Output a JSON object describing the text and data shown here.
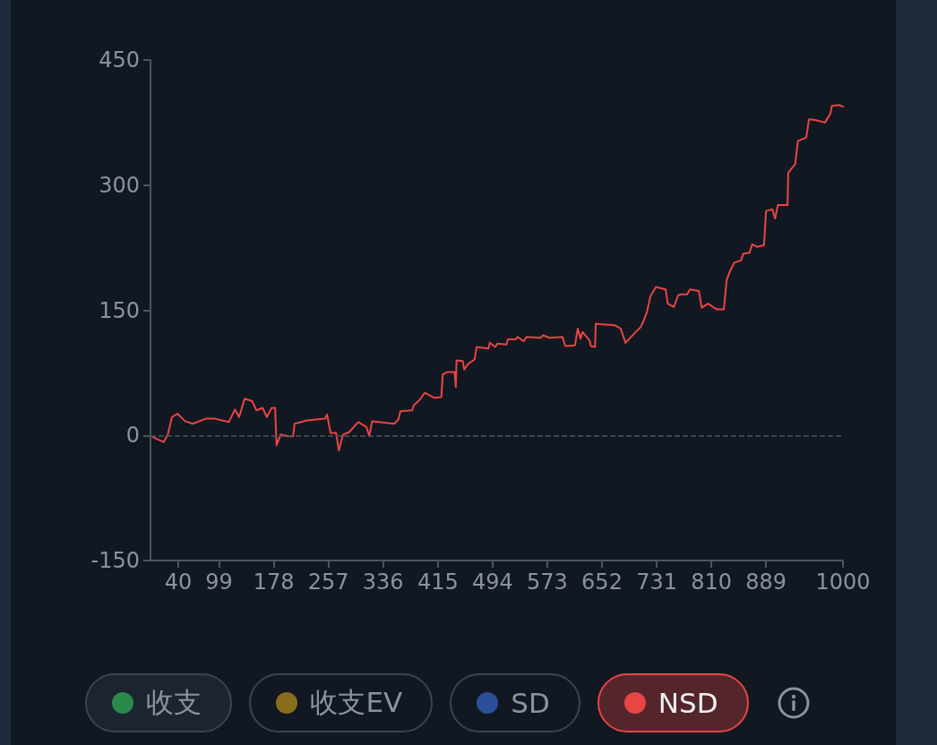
{
  "chart_data": {
    "type": "line",
    "xlim": [
      0,
      1000
    ],
    "xticks": [
      40,
      99,
      178,
      257,
      336,
      415,
      494,
      573,
      652,
      731,
      810,
      889,
      1000
    ],
    "ylim": [
      -150,
      450
    ],
    "yticks": [
      -150,
      0,
      150,
      300,
      450
    ],
    "grid": false,
    "legend": "bottom",
    "marker": "none",
    "line_style": "solid",
    "ref_lines": [
      {
        "axis": "y",
        "value": 0,
        "color": "#4b5563",
        "line_style": "dashed"
      }
    ],
    "series": [
      {
        "name": "收支",
        "color": "#2a8a4e"
      },
      {
        "name": "收支EV",
        "color": "#8a6d1c"
      },
      {
        "name": "SD",
        "color": "#2b4f98"
      },
      {
        "name": "NSD",
        "color": "#e84545",
        "x": [
          3,
          19,
          25,
          31,
          39,
          50,
          61,
          80,
          93,
          113,
          122,
          128,
          136,
          147,
          153,
          162,
          168,
          175,
          180,
          182,
          188,
          199,
          206,
          208,
          226,
          252,
          255,
          260,
          268,
          272,
          278,
          287,
          300,
          312,
          316,
          320,
          352,
          358,
          361,
          378,
          380,
          388,
          396,
          410,
          420,
          422,
          429,
          439,
          441,
          442,
          451,
          453,
          459,
          468,
          471,
          488,
          490,
          498,
          501,
          514,
          516,
          527,
          530,
          539,
          543,
          563,
          567,
          576,
          595,
          599,
          613,
          617,
          621,
          624,
          627,
          634,
          636,
          642,
          643,
          653,
          671,
          679,
          686,
          695,
          708,
          712,
          717,
          722,
          730,
          744,
          747,
          756,
          762,
          766,
          775,
          779,
          792,
          796,
          805,
          818,
          828,
          832,
          837,
          843,
          853,
          856,
          865,
          869,
          876,
          886,
          889,
          898,
          902,
          906,
          920,
          921,
          931,
          935,
          947,
          951,
          960,
          974,
          982,
          984,
          995,
          1000
        ],
        "values": [
          -2,
          -8,
          1,
          22,
          26,
          17,
          14,
          20,
          20,
          16,
          31,
          22,
          44,
          41,
          30,
          33,
          22,
          33,
          33,
          -12,
          1,
          -1,
          -1,
          14,
          18,
          20,
          25,
          3,
          3,
          -18,
          1,
          4,
          16,
          10,
          -1,
          17,
          14,
          19,
          29,
          30,
          36,
          42,
          51,
          45,
          46,
          73,
          76,
          76,
          58,
          90,
          89,
          79,
          86,
          91,
          106,
          104,
          111,
          106,
          110,
          109,
          115,
          115,
          118,
          113,
          118,
          117,
          120,
          117,
          118,
          107,
          108,
          128,
          116,
          124,
          121,
          114,
          107,
          106,
          134,
          133,
          132,
          128,
          111,
          119,
          130,
          137,
          148,
          167,
          178,
          175,
          158,
          154,
          168,
          169,
          169,
          175,
          173,
          153,
          158,
          151,
          151,
          186,
          197,
          207,
          210,
          218,
          219,
          229,
          226,
          228,
          269,
          271,
          260,
          276,
          276,
          315,
          325,
          353,
          357,
          379,
          378,
          375,
          386,
          395,
          396,
          394
        ]
      }
    ]
  }
}
